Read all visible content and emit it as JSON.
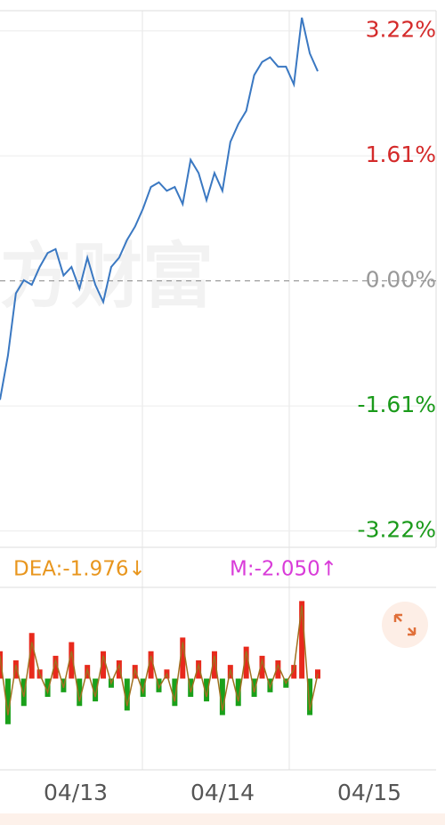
{
  "chart_data": [
    {
      "type": "line",
      "watermark": "方财富",
      "ylim": [
        -3.43,
        3.48
      ],
      "yticks": [
        {
          "value": 3.22,
          "label": "3.22%"
        },
        {
          "value": 1.61,
          "label": "1.61%"
        },
        {
          "value": 0,
          "label": "0.00%"
        },
        {
          "value": -1.61,
          "label": "-1.61%"
        },
        {
          "value": -3.22,
          "label": "-3.22%"
        }
      ],
      "up_color": "#d42a2a",
      "zero_color": "#999999",
      "down_color": "#1a9a1a",
      "series": [
        {
          "color": "#3a78c2",
          "values": [
            -1.53,
            -0.96,
            -0.16,
            0.01,
            -0.05,
            0.18,
            0.36,
            0.41,
            0.07,
            0.18,
            -0.1,
            0.3,
            -0.05,
            -0.27,
            0.18,
            0.3,
            0.53,
            0.7,
            0.93,
            1.21,
            1.27,
            1.16,
            1.21,
            0.99,
            1.56,
            1.39,
            1.04,
            1.39,
            1.16,
            1.79,
            2.02,
            2.19,
            2.65,
            2.82,
            2.88,
            2.76,
            2.76,
            2.53,
            3.39,
            2.93,
            2.7
          ]
        }
      ]
    },
    {
      "type": "macd",
      "legend": [
        {
          "text": "DEA:-1.976↓",
          "color": "#e8961e"
        },
        {
          "text": "M:-2.050↑",
          "color": "#d93cd9"
        }
      ],
      "x_labels": [
        "04/13",
        "04/14",
        "04/15"
      ],
      "ylim": [
        -1,
        1
      ],
      "up_color": "#e8291c",
      "down_color": "#1aa01a",
      "values": [
        0.3,
        -0.5,
        0.2,
        -0.3,
        0.5,
        0.1,
        -0.2,
        0.25,
        -0.15,
        0.4,
        -0.3,
        0.15,
        -0.25,
        0.3,
        -0.1,
        0.2,
        -0.35,
        0.15,
        -0.2,
        0.3,
        -0.15,
        0.1,
        -0.3,
        0.45,
        -0.2,
        0.2,
        -0.25,
        0.3,
        -0.4,
        0.15,
        -0.3,
        0.35,
        -0.2,
        0.25,
        -0.15,
        0.2,
        -0.1,
        0.15,
        0.85,
        -0.4,
        0.1
      ],
      "line": {
        "color": "#a07020",
        "values": [
          0.25,
          -0.4,
          0.15,
          -0.2,
          0.4,
          0.05,
          -0.15,
          0.2,
          -0.1,
          0.3,
          -0.25,
          0.1,
          -0.2,
          0.25,
          -0.05,
          0.15,
          -0.3,
          0.1,
          -0.15,
          0.25,
          -0.1,
          0.05,
          -0.25,
          0.4,
          -0.15,
          0.15,
          -0.2,
          0.25,
          -0.35,
          0.1,
          -0.25,
          0.3,
          -0.15,
          0.2,
          -0.1,
          0.15,
          -0.05,
          0.1,
          0.8,
          -0.35,
          0.05
        ]
      }
    }
  ]
}
